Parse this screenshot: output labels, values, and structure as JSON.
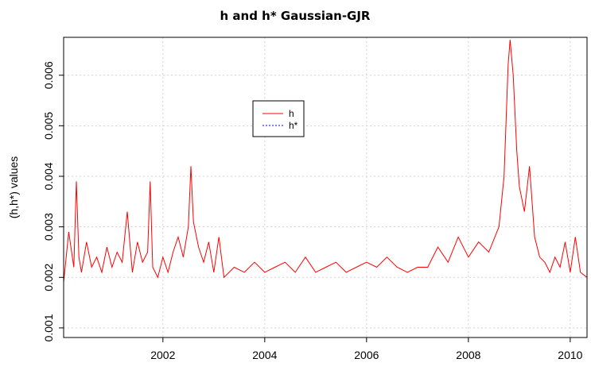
{
  "chart_data": {
    "type": "line",
    "title": "h and h* Gaussian-GJR",
    "xlabel": "",
    "ylabel": "(h,h*) values",
    "xlim": [
      2000.05,
      2010.33
    ],
    "ylim": [
      0.00081,
      0.00675
    ],
    "x_ticks": [
      2002,
      2004,
      2006,
      2008,
      2010
    ],
    "x_tick_labels": [
      "2002",
      "2004",
      "2006",
      "2008",
      "2010"
    ],
    "y_ticks": [
      0.001,
      0.002,
      0.003,
      0.004,
      0.005,
      0.006
    ],
    "y_tick_labels": [
      "0.001",
      "0.002",
      "0.003",
      "0.004",
      "0.005",
      "0.006"
    ],
    "grid": true,
    "legend_position": "top-center",
    "series": [
      {
        "name": "h",
        "color": "#ff0000",
        "line_style": "solid",
        "x": [
          2000.05,
          2000.15,
          2000.25,
          2000.3,
          2000.35,
          2000.4,
          2000.5,
          2000.6,
          2000.7,
          2000.8,
          2000.9,
          2001.0,
          2001.1,
          2001.2,
          2001.3,
          2001.4,
          2001.5,
          2001.6,
          2001.7,
          2001.75,
          2001.8,
          2001.9,
          2002.0,
          2002.1,
          2002.2,
          2002.3,
          2002.4,
          2002.5,
          2002.55,
          2002.6,
          2002.7,
          2002.8,
          2002.9,
          2003.0,
          2003.1,
          2003.2,
          2003.4,
          2003.6,
          2003.8,
          2004.0,
          2004.2,
          2004.4,
          2004.6,
          2004.8,
          2005.0,
          2005.2,
          2005.4,
          2005.6,
          2005.8,
          2006.0,
          2006.2,
          2006.4,
          2006.6,
          2006.8,
          2007.0,
          2007.2,
          2007.4,
          2007.6,
          2007.8,
          2008.0,
          2008.2,
          2008.4,
          2008.6,
          2008.7,
          2008.78,
          2008.82,
          2008.88,
          2008.95,
          2009.0,
          2009.1,
          2009.2,
          2009.3,
          2009.4,
          2009.5,
          2009.6,
          2009.7,
          2009.8,
          2009.9,
          2010.0,
          2010.1,
          2010.2,
          2010.33
        ],
        "values": [
          0.0019,
          0.0029,
          0.0022,
          0.0039,
          0.0024,
          0.0021,
          0.0027,
          0.0022,
          0.0024,
          0.0021,
          0.0026,
          0.0022,
          0.0025,
          0.0023,
          0.0033,
          0.0021,
          0.0027,
          0.0023,
          0.0025,
          0.0039,
          0.0022,
          0.002,
          0.0024,
          0.0021,
          0.0025,
          0.0028,
          0.0024,
          0.003,
          0.0042,
          0.0031,
          0.0026,
          0.0023,
          0.0027,
          0.0021,
          0.0028,
          0.002,
          0.0022,
          0.0021,
          0.0023,
          0.0021,
          0.0022,
          0.0023,
          0.0021,
          0.0024,
          0.0021,
          0.0022,
          0.0023,
          0.0021,
          0.0022,
          0.0023,
          0.0022,
          0.0024,
          0.0022,
          0.0021,
          0.0022,
          0.0022,
          0.0026,
          0.0023,
          0.0028,
          0.0024,
          0.0027,
          0.0025,
          0.003,
          0.004,
          0.0062,
          0.0067,
          0.006,
          0.0045,
          0.0038,
          0.0033,
          0.0042,
          0.0028,
          0.0024,
          0.0023,
          0.0021,
          0.0024,
          0.0022,
          0.0027,
          0.0021,
          0.0028,
          0.0021,
          0.002
        ]
      },
      {
        "name": "h*",
        "color": "#0000ff",
        "line_style": "dashed",
        "x": [],
        "values": []
      }
    ]
  }
}
